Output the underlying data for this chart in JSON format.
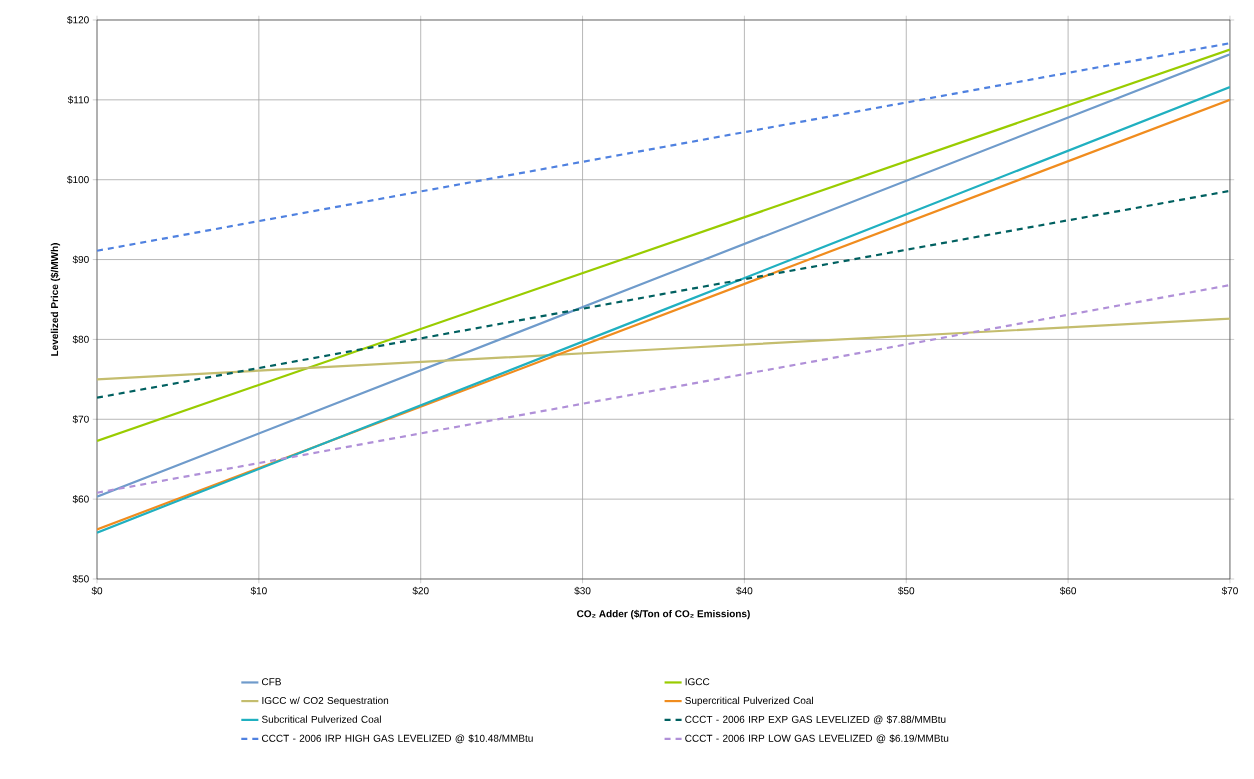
{
  "chart_data": {
    "type": "line",
    "xlabel": "CO₂ Adder ($/Ton of CO₂ Emissions)",
    "ylabel": "Levelized Price ($/MWh)",
    "x": [
      0,
      35,
      70
    ],
    "xlim": [
      0,
      70
    ],
    "ylim": [
      50,
      120
    ],
    "xticks": [
      {
        "value": 0,
        "label": "$0"
      },
      {
        "value": 10,
        "label": "$10"
      },
      {
        "value": 20,
        "label": "$20"
      },
      {
        "value": 30,
        "label": "$30"
      },
      {
        "value": 40,
        "label": "$40"
      },
      {
        "value": 50,
        "label": "$50"
      },
      {
        "value": 60,
        "label": "$60"
      },
      {
        "value": 70,
        "label": "$70"
      }
    ],
    "yticks": [
      {
        "value": 50,
        "label": "$50"
      },
      {
        "value": 60,
        "label": "$60"
      },
      {
        "value": 70,
        "label": "$70"
      },
      {
        "value": 80,
        "label": "$80"
      },
      {
        "value": 90,
        "label": "$90"
      },
      {
        "value": 100,
        "label": "$100"
      },
      {
        "value": 110,
        "label": "$110"
      },
      {
        "value": 120,
        "label": "$120"
      }
    ],
    "grid": true,
    "legend": "bottom",
    "series": [
      {
        "name": "CFB",
        "color": "#6f9bcb",
        "values": [
          60.3,
          88.0,
          115.7
        ],
        "line_style": "solid"
      },
      {
        "name": "IGCC",
        "color": "#99cc00",
        "values": [
          67.3,
          91.8,
          116.3
        ],
        "line_style": "solid"
      },
      {
        "name": "IGCC w/ CO2 Sequestration",
        "color": "#c4bd6e",
        "values": [
          75.0,
          78.8,
          82.6
        ],
        "line_style": "solid"
      },
      {
        "name": "Supercritical Pulverized Coal",
        "color": "#f08c1e",
        "values": [
          56.2,
          83.1,
          110.0
        ],
        "line_style": "solid"
      },
      {
        "name": "Subcritical Pulverized Coal",
        "color": "#20b0c0",
        "values": [
          55.8,
          83.7,
          111.6
        ],
        "line_style": "solid"
      },
      {
        "name": "CCCT - 2006 IRP EXP GAS LEVELIZED @ $7.88/MMBtu",
        "color": "#006060",
        "values": [
          72.7,
          85.7,
          98.6
        ],
        "line_style": "dashed"
      },
      {
        "name": "CCCT - 2006 IRP HIGH GAS LEVELIZED @ $10.48/MMBtu",
        "color": "#4f81e0",
        "values": [
          91.1,
          104.1,
          117.1
        ],
        "line_style": "dashed"
      },
      {
        "name": "CCCT - 2006 IRP LOW GAS LEVELIZED @ $6.19/MMBtu",
        "color": "#b090d8",
        "values": [
          60.8,
          73.8,
          86.8
        ],
        "line_style": "dashed"
      }
    ]
  }
}
